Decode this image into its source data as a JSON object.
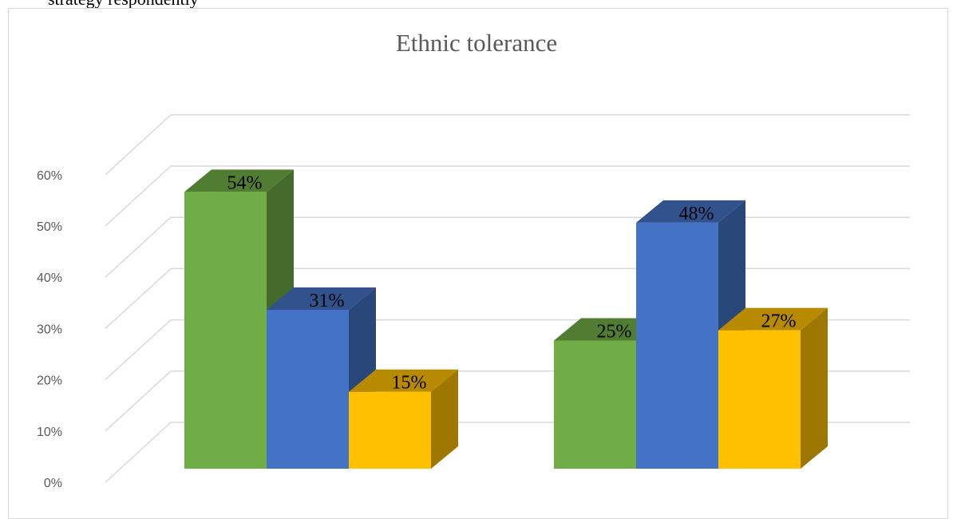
{
  "page": {
    "top_partial_text": "strategy                                            respondently"
  },
  "chart_data": {
    "type": "bar",
    "title": "Ethnic tolerance",
    "categories": [
      "",
      ""
    ],
    "series": [
      {
        "values": [
          54,
          25
        ],
        "color": "#70AD47",
        "label_values": [
          "54%",
          "25%"
        ]
      },
      {
        "values": [
          31,
          48
        ],
        "color": "#4472C4",
        "label_values": [
          "31%",
          "48%"
        ]
      },
      {
        "values": [
          15,
          27
        ],
        "color": "#FFC000",
        "label_values": [
          "15%",
          "27%"
        ]
      }
    ],
    "ylim": [
      0,
      60
    ],
    "yticks": [
      "0%",
      "10%",
      "20%",
      "30%",
      "40%",
      "50%",
      "60%"
    ],
    "grid": true,
    "three_d": true
  }
}
